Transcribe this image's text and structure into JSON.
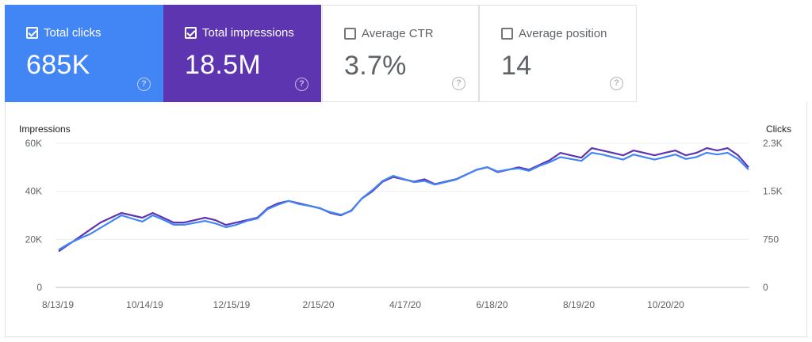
{
  "metrics": [
    {
      "label": "Total clicks",
      "value": "685K",
      "checked": true,
      "color": "#4285f4"
    },
    {
      "label": "Total impressions",
      "value": "18.5M",
      "checked": true,
      "color": "#5e35b1"
    },
    {
      "label": "Average CTR",
      "value": "3.7%",
      "checked": false
    },
    {
      "label": "Average position",
      "value": "14",
      "checked": false
    }
  ],
  "help_glyph": "?",
  "chart_data": {
    "type": "line",
    "y_left_label": "Impressions",
    "y_right_label": "Clicks",
    "y_left_ticks": [
      "60K",
      "40K",
      "20K",
      "0"
    ],
    "y_right_ticks": [
      "2.3K",
      "1.5K",
      "750",
      "0"
    ],
    "ylim_left": [
      0,
      60000
    ],
    "ylim_right": [
      0,
      2300
    ],
    "x_ticks": [
      "8/13/19",
      "10/14/19",
      "12/15/19",
      "2/15/20",
      "4/17/20",
      "6/18/20",
      "8/19/20",
      "10/20/20"
    ],
    "grid": true,
    "series": [
      {
        "name": "Total impressions",
        "axis": "left",
        "color": "#5e35b1",
        "values": [
          15000,
          18000,
          21000,
          24000,
          27000,
          29000,
          31000,
          30000,
          29000,
          31000,
          29000,
          27000,
          27000,
          28000,
          29000,
          28000,
          26000,
          27000,
          28000,
          29000,
          33000,
          35000,
          36000,
          35000,
          34000,
          33000,
          31000,
          30000,
          32000,
          37000,
          40000,
          44000,
          46000,
          45000,
          44000,
          45000,
          43000,
          44000,
          45000,
          47000,
          49000,
          50000,
          48000,
          49000,
          50000,
          49000,
          51000,
          53000,
          56000,
          55000,
          54000,
          58000,
          57000,
          56000,
          55000,
          57000,
          56000,
          55000,
          56000,
          57000,
          55000,
          56000,
          58000,
          57000,
          58000,
          55000,
          50000
        ]
      },
      {
        "name": "Total clicks",
        "axis": "right",
        "color": "#4285f4",
        "values": [
          600,
          700,
          780,
          850,
          950,
          1050,
          1150,
          1100,
          1050,
          1150,
          1080,
          1000,
          1000,
          1030,
          1060,
          1020,
          960,
          1000,
          1060,
          1100,
          1250,
          1320,
          1380,
          1330,
          1300,
          1260,
          1200,
          1160,
          1220,
          1420,
          1550,
          1700,
          1780,
          1730,
          1680,
          1700,
          1640,
          1680,
          1720,
          1800,
          1880,
          1920,
          1850,
          1880,
          1900,
          1860,
          1940,
          2000,
          2080,
          2050,
          2020,
          2150,
          2120,
          2080,
          2040,
          2120,
          2080,
          2040,
          2080,
          2120,
          2050,
          2080,
          2150,
          2120,
          2150,
          2050,
          1880
        ]
      }
    ]
  }
}
